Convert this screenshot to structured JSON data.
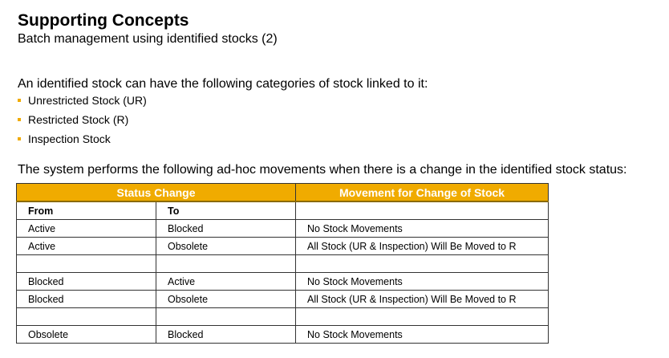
{
  "header": {
    "title": "Supporting Concepts",
    "subtitle": "Batch management using identified stocks (2)"
  },
  "intro": "An identified stock can have the following categories of stock linked to it:",
  "bullets": [
    "Unrestricted Stock (UR)",
    "Restricted Stock (R)",
    "Inspection Stock"
  ],
  "lead": "The system performs the following ad-hoc movements when there is a change in the identified stock status:",
  "table": {
    "header_status": "Status Change",
    "header_movement": "Movement for Change of Stock",
    "col_from": "From",
    "col_to": "To",
    "rows": [
      {
        "from": "Active",
        "to": "Blocked",
        "movement": "No Stock Movements"
      },
      {
        "from": "Active",
        "to": "Obsolete",
        "movement": "All Stock (UR & Inspection) Will Be Moved to R"
      },
      {
        "from": "",
        "to": "",
        "movement": ""
      },
      {
        "from": "Blocked",
        "to": "Active",
        "movement": "No Stock Movements"
      },
      {
        "from": "Blocked",
        "to": "Obsolete",
        "movement": "All Stock (UR & Inspection) Will Be Moved to R"
      },
      {
        "from": "",
        "to": "",
        "movement": ""
      },
      {
        "from": "Obsolete",
        "to": "Blocked",
        "movement": "No Stock Movements"
      }
    ]
  },
  "colors": {
    "accent": "#f0ab00",
    "header_text": "#ffffff"
  }
}
